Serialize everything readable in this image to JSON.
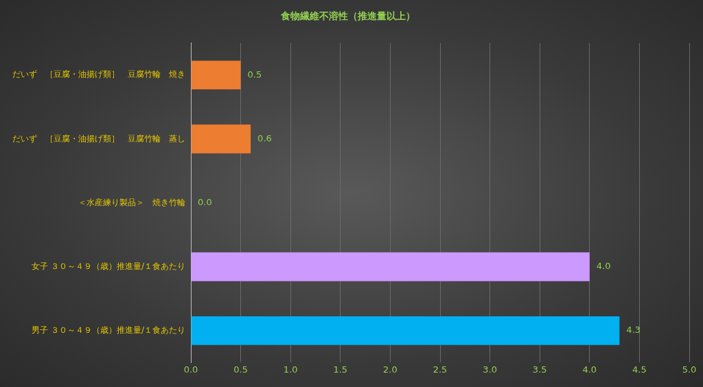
{
  "chart_data": {
    "type": "bar",
    "orientation": "horizontal",
    "title": "食物繊維不溶性（推進量以上）",
    "categories": [
      "だいず　［豆腐・油揚げ類］　豆腐竹輪　焼き",
      "だいず　［豆腐・油揚げ類］　豆腐竹輪　蒸し",
      "＜水産練り製品＞　焼き竹輪",
      "女子 ３０～４９（歳）推進量/１食あたり",
      "男子 ３０～４９（歳）推進量/１食あたり"
    ],
    "values": [
      0.5,
      0.6,
      0.0,
      4.0,
      4.3
    ],
    "value_labels": [
      "0.5",
      "0.6",
      "0.0",
      "4.0",
      "4.3"
    ],
    "colors": [
      "#ed7d31",
      "#ed7d31",
      "#ed7d31",
      "#cc99ff",
      "#00b0f0"
    ],
    "xlim": [
      0,
      5
    ],
    "xticks": [
      {
        "value": 0,
        "label": "0.0"
      },
      {
        "value": 0.5,
        "label": "0.5"
      },
      {
        "value": 1,
        "label": "1.0"
      },
      {
        "value": 1.5,
        "label": "1.5"
      },
      {
        "value": 2,
        "label": "2.0"
      },
      {
        "value": 2.5,
        "label": "2.5"
      },
      {
        "value": 3,
        "label": "3.0"
      },
      {
        "value": 3.5,
        "label": "3.5"
      },
      {
        "value": 4,
        "label": "4.0"
      },
      {
        "value": 4.5,
        "label": "4.5"
      },
      {
        "value": 5,
        "label": "5.0"
      }
    ],
    "grid": "x",
    "legend": false
  }
}
